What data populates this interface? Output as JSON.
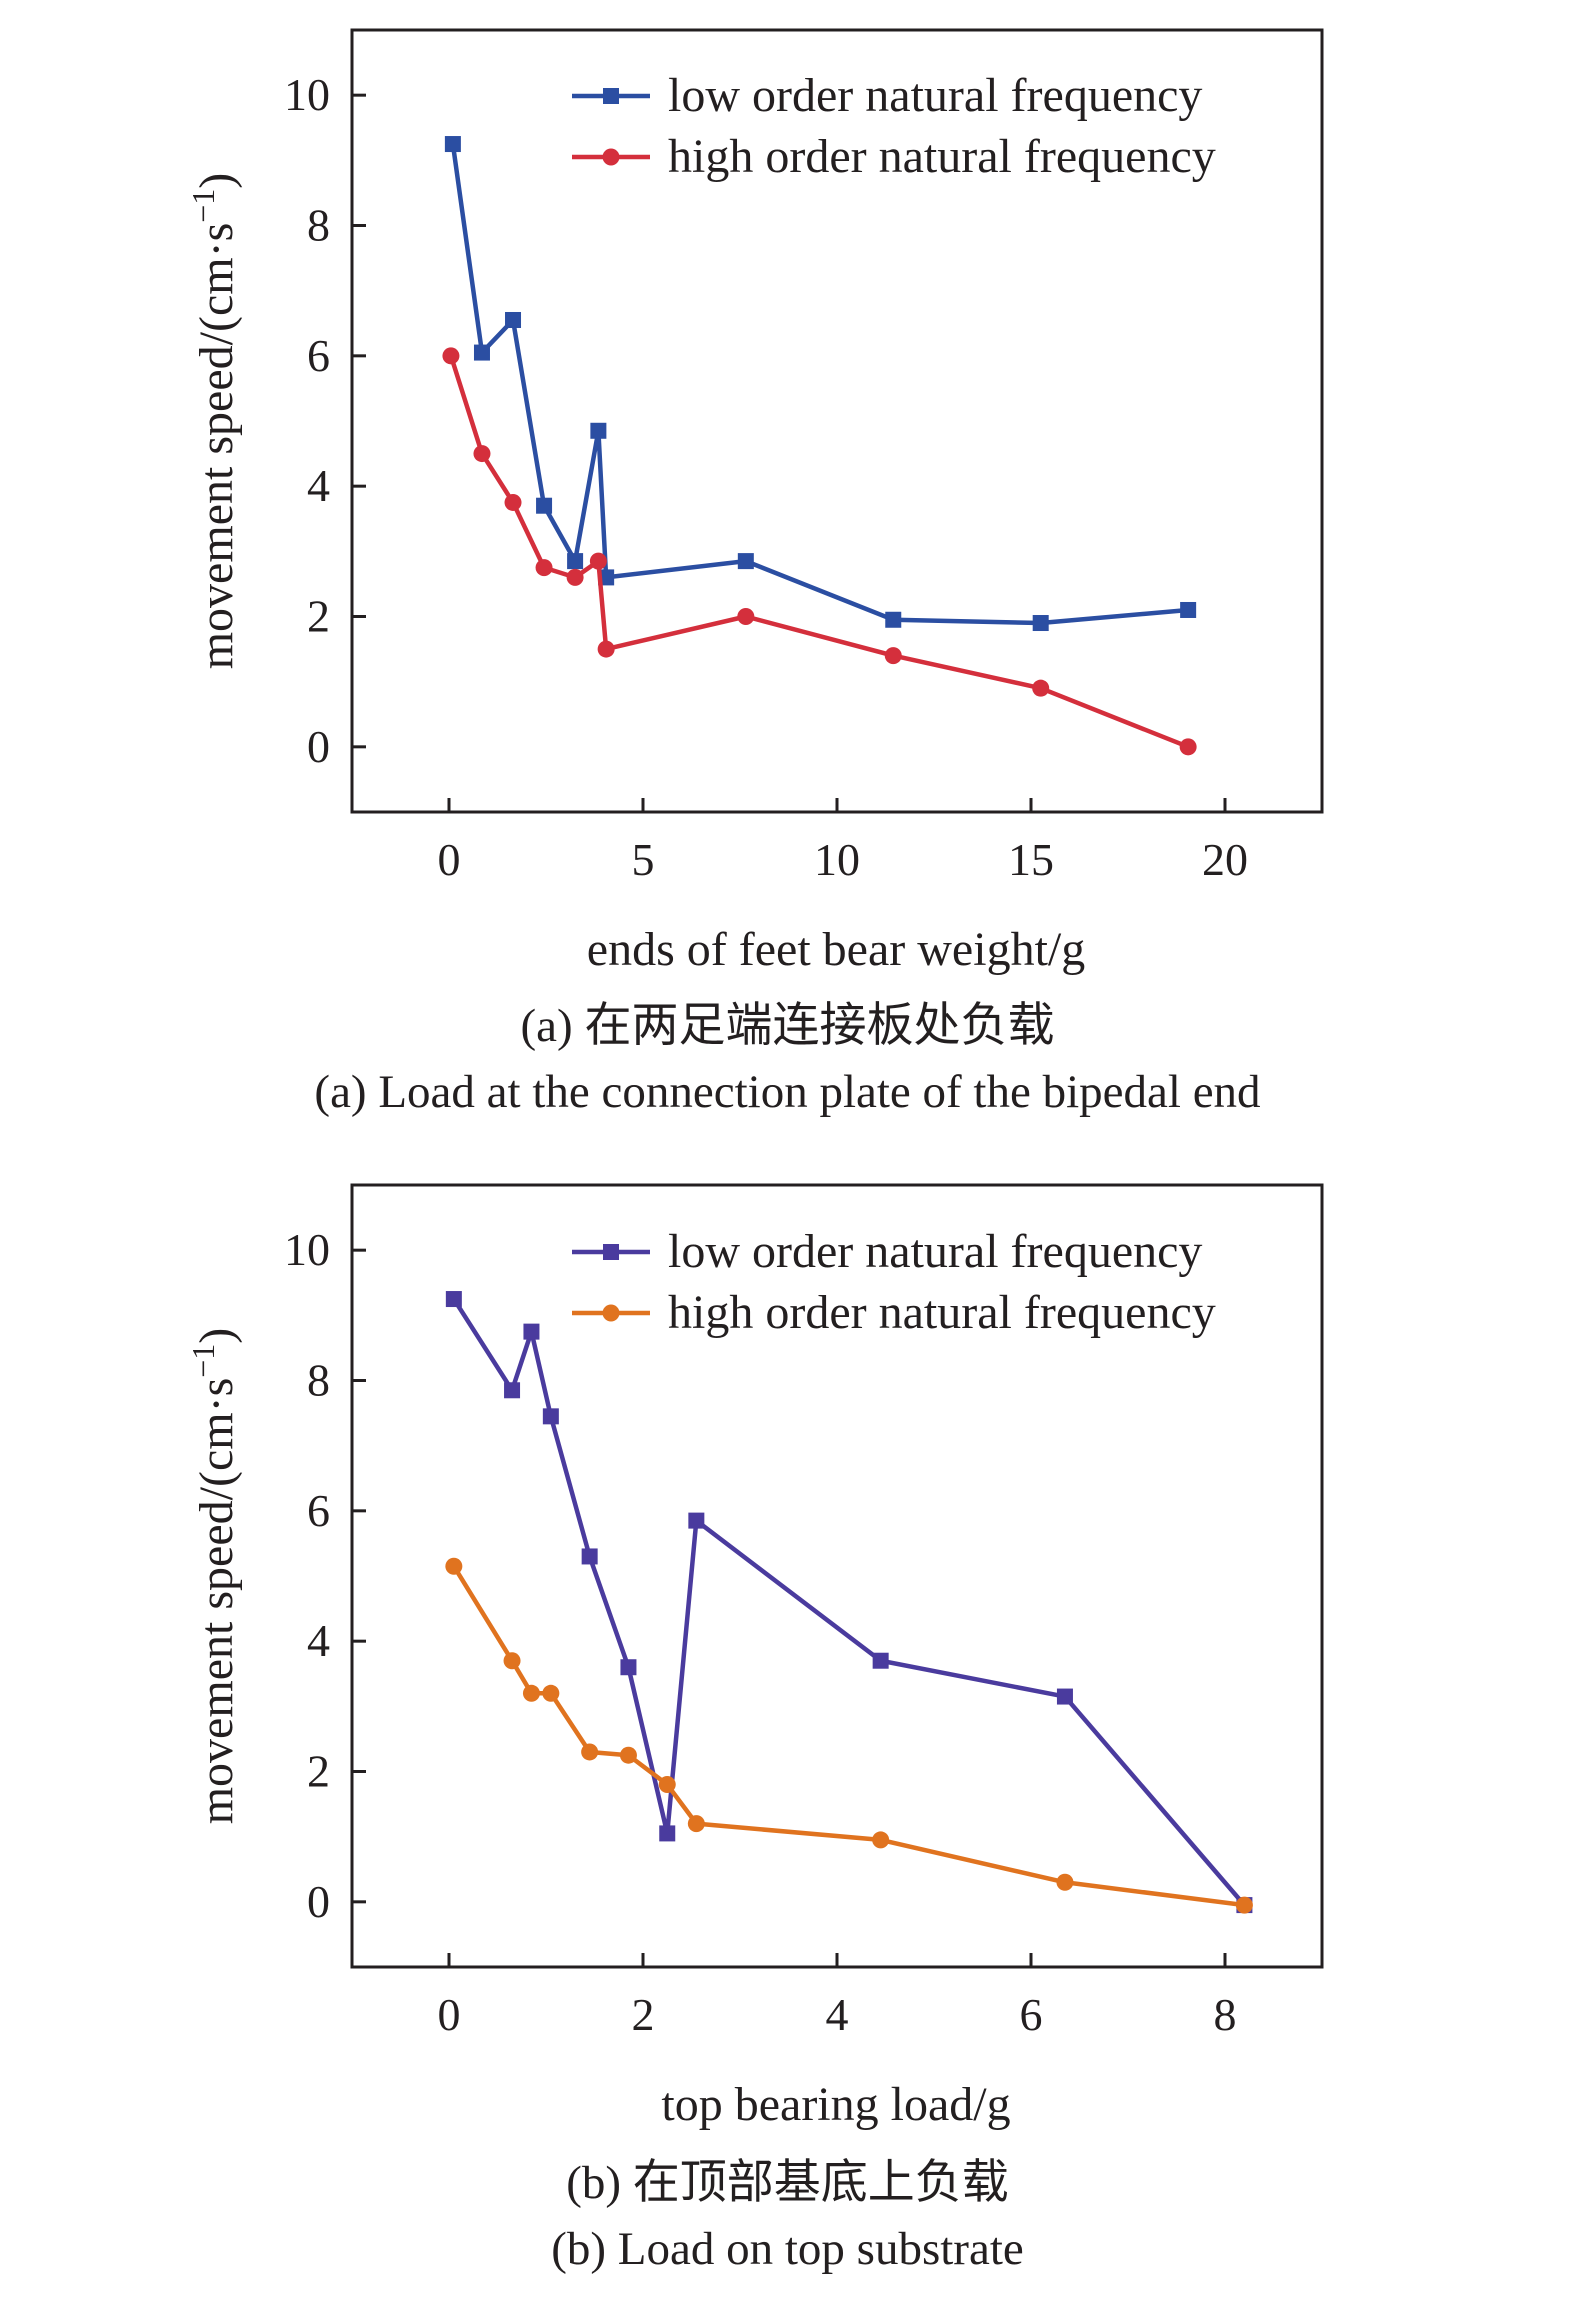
{
  "charts": [
    {
      "chart_data": {
        "type": "line",
        "xlabel": "ends of feet bear weight/g",
        "ylabel": "movement speed/(cm·s",
        "ylabel_sup": "−1",
        "ylabel_close": ")",
        "xlim": [
          -2.5,
          22.5
        ],
        "ylim": [
          -1,
          11
        ],
        "xticks": [
          0,
          5,
          10,
          15,
          20
        ],
        "yticks": [
          0,
          2,
          4,
          6,
          8,
          10
        ],
        "grid": false,
        "legend_position": "top-right",
        "series": [
          {
            "name": "low order natural frequency",
            "color": "#2b4ea2",
            "marker": "square",
            "x": [
              0.1,
              0.85,
              1.65,
              2.45,
              3.25,
              3.85,
              4.05,
              7.65,
              11.45,
              15.25,
              19.05
            ],
            "y": [
              9.25,
              6.05,
              6.55,
              3.7,
              2.85,
              4.85,
              2.6,
              2.85,
              1.95,
              1.9,
              2.1
            ]
          },
          {
            "name": "high order natural frequency",
            "color": "#d42f3c",
            "marker": "circle",
            "x": [
              0.05,
              0.85,
              1.65,
              2.45,
              3.25,
              3.85,
              4.05,
              7.65,
              11.45,
              15.25,
              19.05
            ],
            "y": [
              6.0,
              4.5,
              3.75,
              2.75,
              2.6,
              2.85,
              1.5,
              2.0,
              1.4,
              0.9,
              0.0
            ]
          }
        ]
      },
      "caption_cn": "(a) 在两足端连接板处负载",
      "caption_en": "(a) Load at the connection plate of the bipedal end"
    },
    {
      "chart_data": {
        "type": "line",
        "xlabel": "top bearing load/g",
        "ylabel": "movement speed/(cm·s",
        "ylabel_sup": "−1",
        "ylabel_close": ")",
        "xlim": [
          -1,
          9
        ],
        "ylim": [
          -1,
          11
        ],
        "xticks": [
          0,
          2,
          4,
          6,
          8
        ],
        "yticks": [
          0,
          2,
          4,
          6,
          8,
          10
        ],
        "grid": false,
        "legend_position": "top-right",
        "series": [
          {
            "name": "low order natural frequency",
            "color": "#4a3b9e",
            "marker": "square",
            "x": [
              0.05,
              0.65,
              0.85,
              1.05,
              1.45,
              1.85,
              2.25,
              2.55,
              4.45,
              6.35,
              8.2
            ],
            "y": [
              9.25,
              7.85,
              8.75,
              7.45,
              5.3,
              3.6,
              1.05,
              5.85,
              3.7,
              3.15,
              -0.05
            ]
          },
          {
            "name": "high order natural frequency",
            "color": "#e0731f",
            "marker": "circle",
            "x": [
              0.05,
              0.65,
              0.85,
              1.05,
              1.45,
              1.85,
              2.25,
              2.55,
              4.45,
              6.35,
              8.2
            ],
            "y": [
              5.15,
              3.7,
              3.2,
              3.2,
              2.3,
              2.25,
              1.8,
              1.2,
              0.95,
              0.3,
              -0.05
            ]
          }
        ]
      },
      "caption_cn": "(b) 在顶部基底上负载",
      "caption_en": "(b) Load on top substrate"
    }
  ]
}
